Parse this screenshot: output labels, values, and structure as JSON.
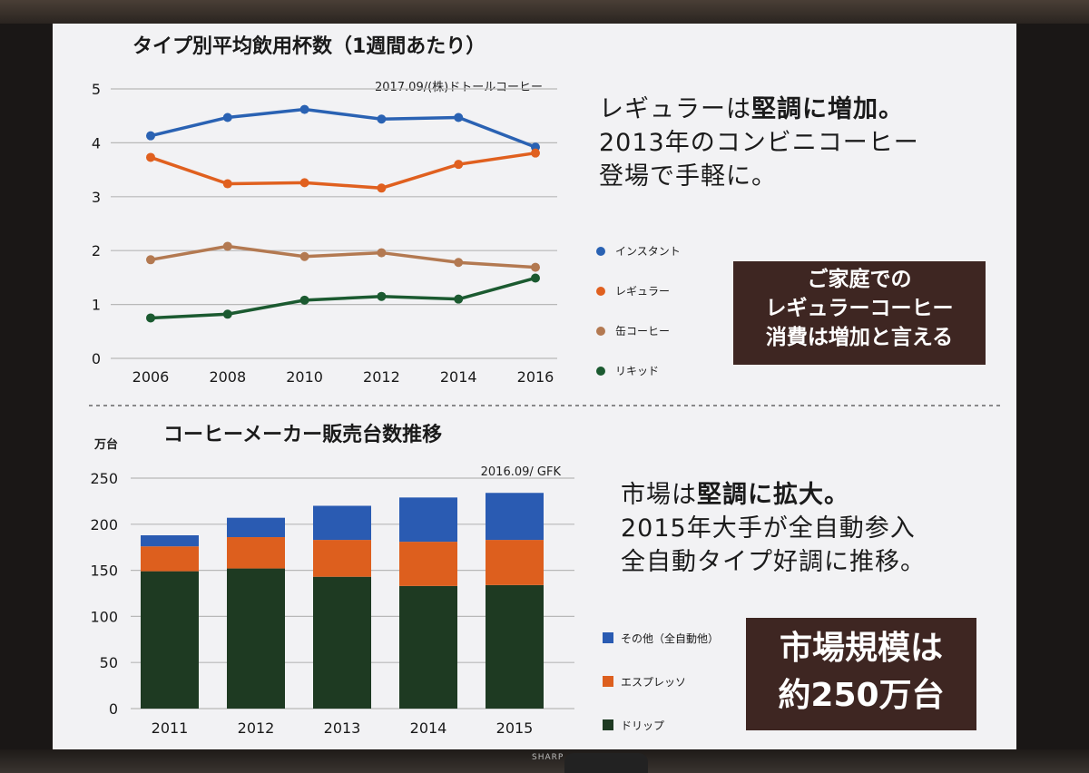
{
  "chart_data": [
    {
      "type": "line",
      "title": "タイプ別平均飲用杯数（1週間あたり）",
      "source": "2017.09/(株)ドトールコーヒー",
      "x": [
        "2006",
        "2008",
        "2010",
        "2012",
        "2014",
        "2016"
      ],
      "ylim": [
        0,
        5
      ],
      "yticks": [
        "0",
        "1",
        "2",
        "3",
        "4",
        "5"
      ],
      "grid": true,
      "legend": "right",
      "series": [
        {
          "name": "インスタント",
          "color": "#2a62b3",
          "values": [
            4.13,
            4.47,
            4.62,
            4.44,
            4.47,
            3.92
          ]
        },
        {
          "name": "レギュラー",
          "color": "#e0601f",
          "values": [
            3.73,
            3.24,
            3.26,
            3.16,
            3.6,
            3.81
          ]
        },
        {
          "name": "缶コーヒー",
          "color": "#b37951",
          "values": [
            1.83,
            2.08,
            1.89,
            1.96,
            1.78,
            1.69
          ]
        },
        {
          "name": "リキッド",
          "color": "#1b5a30",
          "values": [
            0.75,
            0.82,
            1.08,
            1.15,
            1.1,
            1.49
          ]
        }
      ]
    },
    {
      "type": "bar",
      "stacked": true,
      "title": "コーヒーメーカー販売台数推移",
      "ylabel": "万台",
      "source": "2016.09/ GFK",
      "categories": [
        "2011",
        "2012",
        "2013",
        "2014",
        "2015"
      ],
      "ylim": [
        0,
        250
      ],
      "yticks": [
        "0",
        "50",
        "100",
        "150",
        "200",
        "250"
      ],
      "grid": true,
      "legend": "right",
      "series": [
        {
          "name": "ドリップ",
          "color": "#1e3a22",
          "values": [
            149,
            152,
            143,
            133,
            134
          ]
        },
        {
          "name": "エスプレッソ",
          "color": "#dd5f1e",
          "values": [
            27,
            34,
            40,
            48,
            49
          ]
        },
        {
          "name": "その他（全自動他）",
          "color": "#2a5bb2",
          "values": [
            12,
            21,
            37,
            48,
            51
          ]
        }
      ]
    }
  ],
  "top_text": {
    "line1_pre": "レギュラーは",
    "line1_bold": "堅調に増加。",
    "line2": "2013年のコンビニコーヒー",
    "line3": "登場で手軽に。"
  },
  "top_badge": {
    "line1": "ご家庭での",
    "line2": "レギュラーコーヒー",
    "line3": "消費は増加と言える"
  },
  "bottom_text": {
    "line1_pre": "市場は",
    "line1_bold": "堅調に拡大。",
    "line2": "2015年大手が全自動参入",
    "line3": "全自動タイプ好調に推移。"
  },
  "bottom_badge": {
    "line1": "市場規模は",
    "line2": "約250万台"
  },
  "tv_brand": "SHARP"
}
